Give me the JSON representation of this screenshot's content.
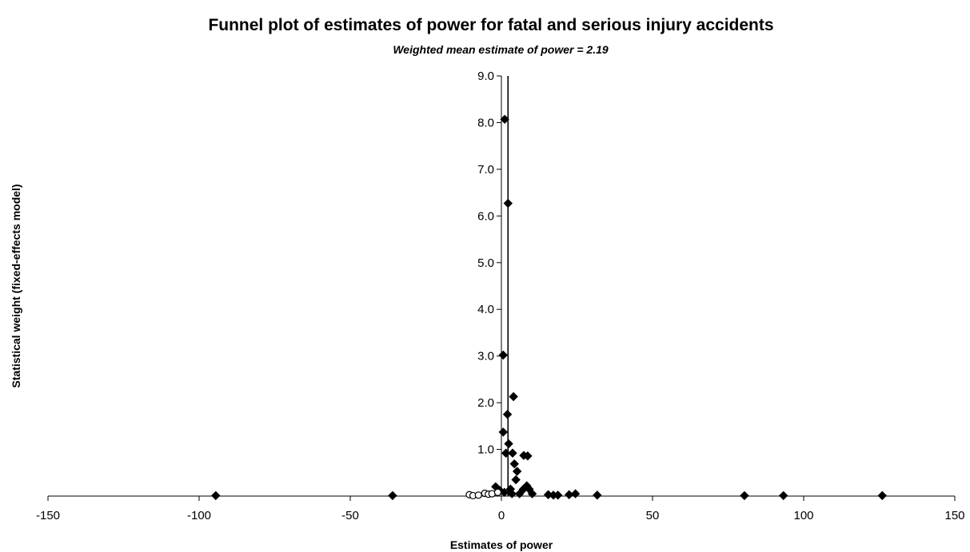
{
  "chart_data": {
    "type": "scatter",
    "title": "Funnel plot of estimates of power for fatal and serious injury accidents",
    "subtitle": "Weighted mean estimate of power = 2.19",
    "xlabel": "Estimates of power",
    "ylabel": "Statistical weight (fixed-effects model)",
    "xlim": [
      -150,
      150
    ],
    "ylim": [
      0,
      9
    ],
    "x_ticks": [
      "-150",
      "-100",
      "-50",
      "0",
      "50",
      "100",
      "150"
    ],
    "y_ticks": [
      "1.0",
      "2.0",
      "3.0",
      "4.0",
      "5.0",
      "6.0",
      "7.0",
      "8.0",
      "9.0"
    ],
    "reference_line_x": 2.19,
    "grid": false,
    "legend": "none",
    "marker_color": "#000000",
    "series": [
      {
        "marker": "filled-diamond",
        "points": [
          {
            "x": 1.1,
            "y": 8.07
          },
          {
            "x": 2.2,
            "y": 6.27
          },
          {
            "x": 0.6,
            "y": 3.02
          },
          {
            "x": 4.0,
            "y": 2.13
          },
          {
            "x": 2.0,
            "y": 1.75
          },
          {
            "x": 0.6,
            "y": 1.37
          },
          {
            "x": 2.4,
            "y": 1.12
          },
          {
            "x": 1.5,
            "y": 0.92
          },
          {
            "x": 3.7,
            "y": 0.92
          },
          {
            "x": 7.4,
            "y": 0.87
          },
          {
            "x": 8.7,
            "y": 0.86
          },
          {
            "x": 4.3,
            "y": 0.69
          },
          {
            "x": 5.2,
            "y": 0.53
          },
          {
            "x": 4.8,
            "y": 0.35
          },
          {
            "x": 8.4,
            "y": 0.22
          },
          {
            "x": 7.3,
            "y": 0.15
          },
          {
            "x": 9.2,
            "y": 0.15
          },
          {
            "x": -1.9,
            "y": 0.2
          },
          {
            "x": -0.5,
            "y": 0.12
          },
          {
            "x": 1.0,
            "y": 0.08
          },
          {
            "x": 3.0,
            "y": 0.15
          },
          {
            "x": 3.5,
            "y": 0.05
          },
          {
            "x": 6.0,
            "y": 0.05
          },
          {
            "x": 10.2,
            "y": 0.05
          },
          {
            "x": 15.5,
            "y": 0.03
          },
          {
            "x": 17.2,
            "y": 0.02
          },
          {
            "x": 18.7,
            "y": 0.02
          },
          {
            "x": 22.4,
            "y": 0.03
          },
          {
            "x": 24.5,
            "y": 0.05
          },
          {
            "x": 31.7,
            "y": 0.02
          },
          {
            "x": 80.4,
            "y": 0.01
          },
          {
            "x": 93.3,
            "y": 0.01
          },
          {
            "x": 126.0,
            "y": 0.01
          },
          {
            "x": -36.0,
            "y": 0.01
          },
          {
            "x": -94.5,
            "y": 0.01
          }
        ]
      },
      {
        "marker": "open-circle",
        "points": [
          {
            "x": -10.6,
            "y": 0.03
          },
          {
            "x": -9.4,
            "y": 0.01
          },
          {
            "x": -7.6,
            "y": 0.02
          },
          {
            "x": -5.5,
            "y": 0.06
          },
          {
            "x": -4.3,
            "y": 0.04
          },
          {
            "x": -3.1,
            "y": 0.05
          },
          {
            "x": -1.2,
            "y": 0.08
          }
        ]
      }
    ]
  }
}
